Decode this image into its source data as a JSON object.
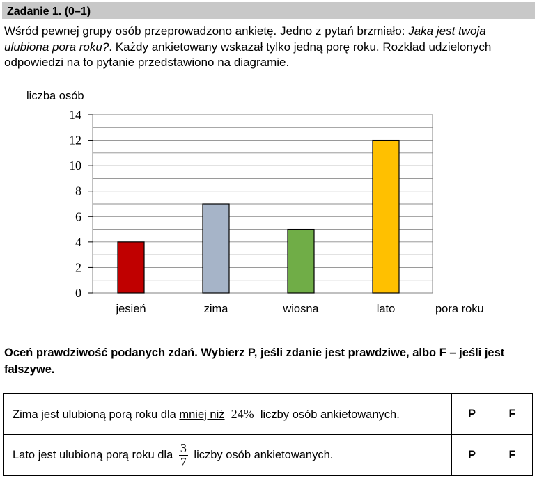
{
  "task": {
    "title": "Zadanie 1. (0–1)",
    "intro_part1": "Wśród pewnej grupy osób przeprowadzono ankietę. Jedno z pytań brzmiało: ",
    "intro_question": "Jaka jest twoja ulubiona pora roku?",
    "intro_part2": ". Każdy ankietowany wskazał tylko jedną porę roku. Rozkład udzielonych odpowiedzi na to pytanie przedstawiono na diagramie."
  },
  "chart_data": {
    "type": "bar",
    "ylabel": "liczba osób",
    "xlabel": "pora roku",
    "categories": [
      "jesień",
      "zima",
      "wiosna",
      "lato"
    ],
    "values": [
      4,
      7,
      5,
      12
    ],
    "bar_colors": [
      "#c00000",
      "#a6b4c8",
      "#70ad47",
      "#ffc000"
    ],
    "ylim": [
      0,
      14
    ],
    "yticks": [
      0,
      2,
      4,
      6,
      8,
      10,
      12,
      14
    ],
    "grid": true
  },
  "instruction": "Oceń prawdziwość podanych zdań. Wybierz P, jeśli zdanie jest prawdziwe, albo F – jeśli jest fałszywe.",
  "statements": [
    {
      "before": "Zima jest ulubioną porą roku dla ",
      "underlined": "mniej niż",
      "value": "24%",
      "after": " liczby osób ankietowanych.",
      "true_label": "P",
      "false_label": "F"
    },
    {
      "before": "Lato jest ulubioną porą roku dla ",
      "frac_num": "3",
      "frac_den": "7",
      "after": " liczby osób ankietowanych.",
      "true_label": "P",
      "false_label": "F"
    }
  ]
}
